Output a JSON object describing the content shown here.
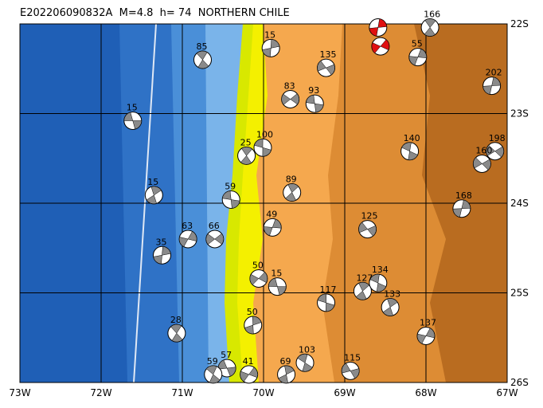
{
  "map": {
    "title": "E202206090832A  M=4.8  h= 74  NORTHERN CHILE",
    "xlim": [
      -73,
      -67
    ],
    "ylim": [
      -26,
      -22
    ],
    "xticks": [
      {
        "value": -73,
        "label": "73W"
      },
      {
        "value": -72,
        "label": "72W"
      },
      {
        "value": -71,
        "label": "71W"
      },
      {
        "value": -70,
        "label": "70W"
      },
      {
        "value": -69,
        "label": "69W"
      },
      {
        "value": -68,
        "label": "68W"
      },
      {
        "value": -67,
        "label": "67W"
      }
    ],
    "yticks": [
      {
        "value": -22,
        "label": "22S"
      },
      {
        "value": -23,
        "label": "23S"
      },
      {
        "value": -24,
        "label": "24S"
      },
      {
        "value": -25,
        "label": "25S"
      },
      {
        "value": -26,
        "label": "26S"
      }
    ],
    "events": [
      {
        "label": "15",
        "lon": -71.61,
        "lat": -23.08
      },
      {
        "label": "85",
        "lon": -70.75,
        "lat": -22.4
      },
      {
        "label": "15",
        "lon": -69.91,
        "lat": -22.27
      },
      {
        "label": "83",
        "lon": -69.67,
        "lat": -22.84
      },
      {
        "label": "93",
        "lon": -69.37,
        "lat": -22.89
      },
      {
        "label": "166",
        "lon": -67.95,
        "lat": -22.04
      },
      {
        "label": "202",
        "lon": -67.19,
        "lat": -22.69
      },
      {
        "label": "198",
        "lon": -67.15,
        "lat": -23.42
      },
      {
        "label": "100",
        "lon": -70.01,
        "lat": -23.38
      },
      {
        "label": "89",
        "lon": -69.65,
        "lat": -23.88
      },
      {
        "label": "49",
        "lon": -69.89,
        "lat": -24.27
      },
      {
        "label": "125",
        "lon": -68.72,
        "lat": -24.29
      },
      {
        "label": "134",
        "lon": -68.59,
        "lat": -24.89
      },
      {
        "label": "133",
        "lon": -68.44,
        "lat": -25.16
      },
      {
        "label": "137",
        "lon": -68.0,
        "lat": -25.48
      },
      {
        "label": "115",
        "lon": -68.93,
        "lat": -25.87
      },
      {
        "label": "103",
        "lon": -69.49,
        "lat": -25.78
      },
      {
        "label": "69",
        "lon": -69.72,
        "lat": -25.91
      },
      {
        "label": "41",
        "lon": -70.18,
        "lat": -25.91
      },
      {
        "label": "57",
        "lon": -70.45,
        "lat": -25.84
      },
      {
        "label": "59",
        "lon": -70.62,
        "lat": -25.91
      },
      {
        "label": "50",
        "lon": -70.13,
        "lat": -25.36
      },
      {
        "label": "50",
        "lon": -70.06,
        "lat": -24.84
      },
      {
        "label": "15",
        "lon": -69.83,
        "lat": -24.93
      },
      {
        "label": "28",
        "lon": -71.07,
        "lat": -25.45
      },
      {
        "label": "35",
        "lon": -71.25,
        "lat": -24.58
      },
      {
        "label": "66",
        "lon": -70.6,
        "lat": -24.4
      },
      {
        "label": "59",
        "lon": -70.4,
        "lat": -23.96
      },
      {
        "label": "25",
        "lon": -70.21,
        "lat": -23.47
      },
      {
        "label": "168",
        "lon": -67.56,
        "lat": -24.06
      },
      {
        "label": "160",
        "lon": -67.31,
        "lat": -23.56
      },
      {
        "label": "117",
        "lon": -69.23,
        "lat": -25.11
      },
      {
        "label": "127",
        "lon": -68.78,
        "lat": -24.98
      },
      {
        "label": "55",
        "lon": -68.1,
        "lat": -22.37
      },
      {
        "label": "135",
        "lon": -69.23,
        "lat": -22.49
      },
      {
        "label": "140",
        "lon": -68.2,
        "lat": -23.42
      },
      {
        "label": "15",
        "lon": -71.35,
        "lat": -23.91
      },
      {
        "label": "63",
        "lon": -70.93,
        "lat": -24.4
      }
    ],
    "highlight": [
      {
        "lon": -68.59,
        "lat": -22.04
      },
      {
        "lon": -68.56,
        "lat": -22.25
      }
    ]
  }
}
